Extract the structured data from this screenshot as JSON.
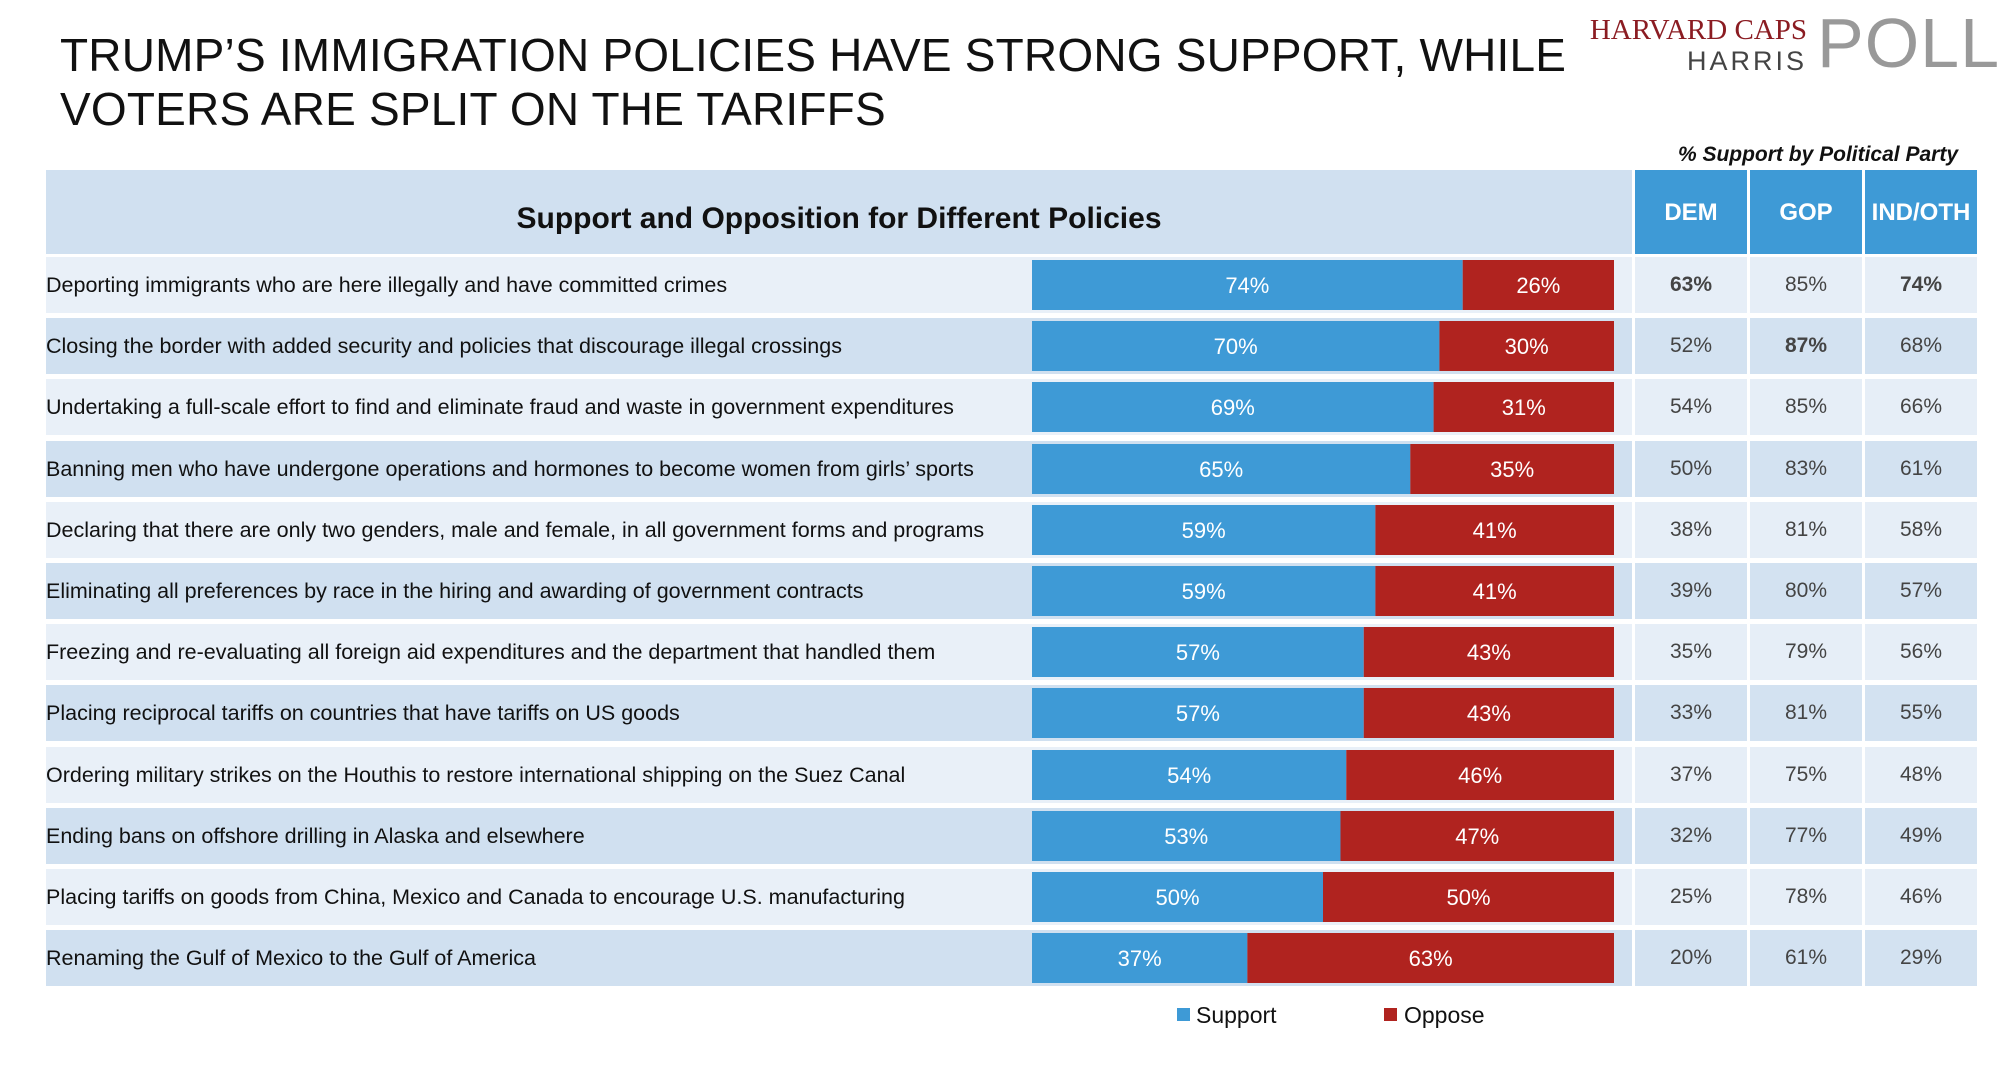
{
  "title_lines": [
    "TRUMP’S IMMIGRATION POLICIES HAVE STRONG SUPPORT, WHILE",
    "VOTERS ARE SPLIT ON THE TARIFFS"
  ],
  "logo": {
    "line1": "HARVARD CAPS",
    "line2": "HARRIS",
    "line3": "POLL"
  },
  "party_caption": "% Support by Political Party",
  "colors": {
    "support": "#3e9ad6",
    "oppose": "#b0231f",
    "row_light": "#e9f0f8",
    "row_dark": "#d0e0f0",
    "party_light": "#e6eef7",
    "party_dark": "#d3e2f1"
  },
  "chart_data": {
    "type": "bar",
    "title": "Support and Opposition for Different Policies",
    "stacked": true,
    "orientation": "horizontal",
    "value_unit": "%",
    "categories": [
      "Deporting immigrants who are here illegally and have committed crimes",
      "Closing the border with added security and policies that discourage illegal crossings",
      "Undertaking a full-scale effort to find and eliminate fraud and waste in government expenditures",
      "Banning men who have undergone operations and hormones to become women from girls’ sports",
      "Declaring that there are only two genders, male and female, in all government forms and programs",
      "Eliminating all preferences by race in the hiring and awarding of government contracts",
      "Freezing and re-evaluating all foreign aid expenditures and the department that handled them",
      "Placing reciprocal tariffs on countries that have tariffs on US goods",
      "Ordering military strikes on the Houthis to restore international shipping on the Suez Canal",
      "Ending bans on offshore drilling in Alaska and elsewhere",
      "Placing tariffs on goods from China, Mexico and Canada to encourage U.S. manufacturing",
      "Renaming the Gulf of Mexico to the Gulf of America"
    ],
    "series": [
      {
        "name": "Support",
        "values": [
          74,
          70,
          69,
          65,
          59,
          59,
          57,
          57,
          54,
          53,
          50,
          37
        ]
      },
      {
        "name": "Oppose",
        "values": [
          26,
          30,
          31,
          35,
          41,
          41,
          43,
          43,
          46,
          47,
          50,
          63
        ]
      }
    ],
    "legend": "bottom-center",
    "party_table": {
      "columns": [
        "DEM",
        "GOP",
        "IND/OTH"
      ],
      "rows": [
        [
          "63%",
          "85%",
          "74%"
        ],
        [
          "52%",
          "87%",
          "68%"
        ],
        [
          "54%",
          "85%",
          "66%"
        ],
        [
          "50%",
          "83%",
          "61%"
        ],
        [
          "38%",
          "81%",
          "58%"
        ],
        [
          "39%",
          "80%",
          "57%"
        ],
        [
          "35%",
          "79%",
          "56%"
        ],
        [
          "33%",
          "81%",
          "55%"
        ],
        [
          "37%",
          "75%",
          "48%"
        ],
        [
          "32%",
          "77%",
          "49%"
        ],
        [
          "25%",
          "78%",
          "46%"
        ],
        [
          "20%",
          "61%",
          "29%"
        ]
      ],
      "bold": [
        [
          0,
          0
        ],
        [
          0,
          2
        ],
        [
          1,
          1
        ]
      ]
    }
  }
}
